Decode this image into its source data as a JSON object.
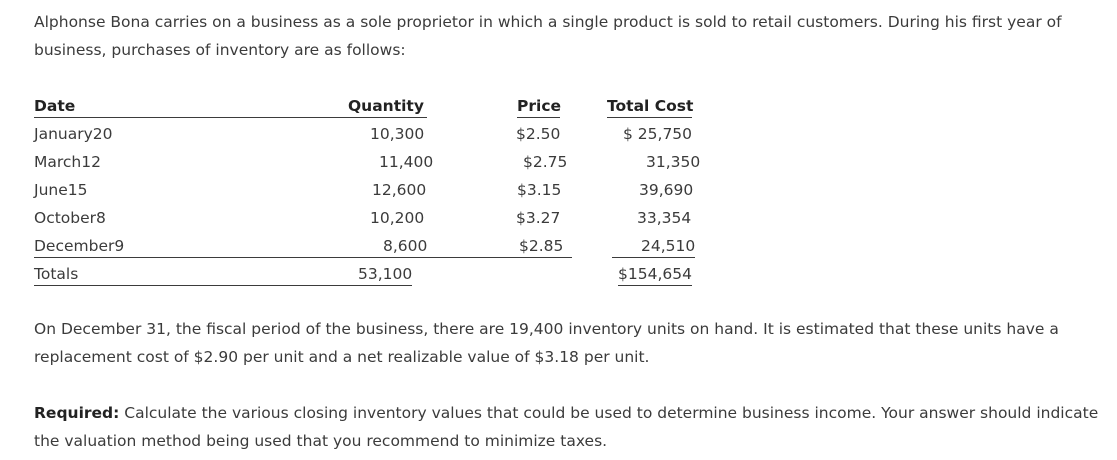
{
  "intro": "Alphonse Bona carries on a business as a sole proprietor in which a single product is sold to retail customers. During his first year of business, purchases of inventory are as follows:",
  "table": {
    "headers": {
      "date": "Date",
      "quantity": "Quantity",
      "price": "Price",
      "total_cost": "Total Cost"
    },
    "rows": [
      {
        "date": "January20",
        "quantity": "10,300",
        "price": "$2.50",
        "total_cost": "$ 25,750"
      },
      {
        "date": "March12",
        "quantity": "11,400",
        "price": "$2.75",
        "total_cost": "31,350"
      },
      {
        "date": "June15",
        "quantity": "12,600",
        "price": "$3.15",
        "total_cost": "39,690"
      },
      {
        "date": "October8",
        "quantity": "10,200",
        "price": "$3.27",
        "total_cost": "33,354"
      },
      {
        "date": "December9",
        "quantity": "8,600",
        "price": "$2.85",
        "total_cost": "24,510"
      }
    ],
    "totals": {
      "label": "Totals",
      "quantity": "53,100",
      "total_cost": "$154,654"
    }
  },
  "closing": "On December 31, the fiscal period of the business, there are 19,400 inventory units on hand. It is estimated that these units have a replacement cost of $2.90 per unit and a net realizable value of $3.18 per unit.",
  "required": {
    "label": "Required:",
    "text": " Calculate the various closing inventory values that could be used to determine business income. Your answer should indicate the valuation method being used that you recommend to minimize taxes."
  }
}
